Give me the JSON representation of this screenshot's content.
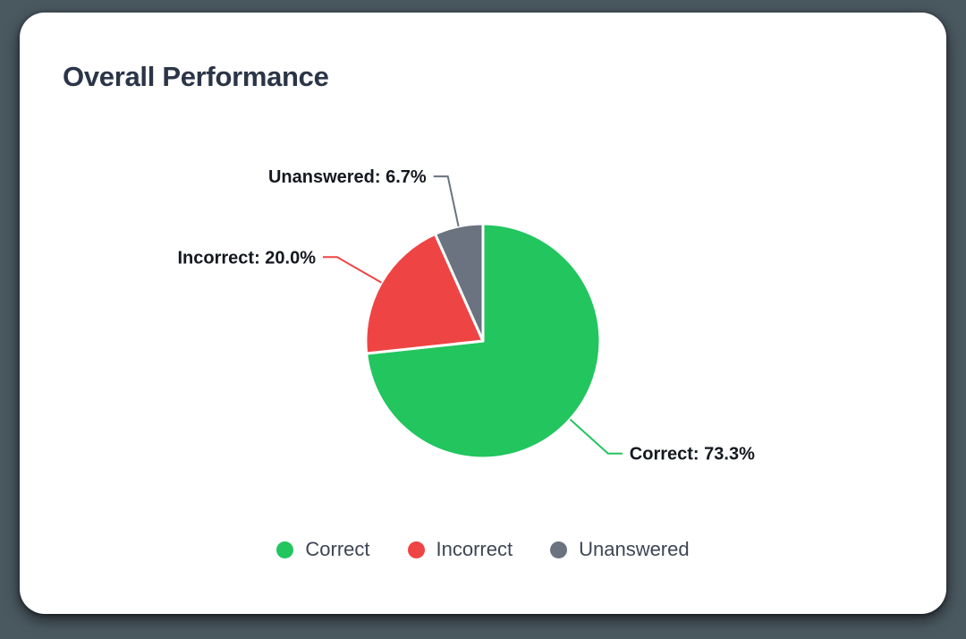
{
  "page": {
    "background_color": "#4a5860"
  },
  "card": {
    "title": "Overall Performance",
    "background_color": "#ffffff"
  },
  "chart_data": {
    "type": "pie",
    "title": "Overall Performance",
    "categories": [
      "Correct",
      "Incorrect",
      "Unanswered"
    ],
    "values": [
      73.3,
      20.0,
      6.7
    ],
    "value_unit": "%",
    "colors": [
      "#22c55e",
      "#ef4444",
      "#6b7280"
    ],
    "callout_labels": [
      "Correct: 73.3%",
      "Incorrect: 20.0%",
      "Unanswered: 6.7%"
    ],
    "start_angle": "top",
    "direction": "clockwise",
    "legend_position": "bottom"
  }
}
